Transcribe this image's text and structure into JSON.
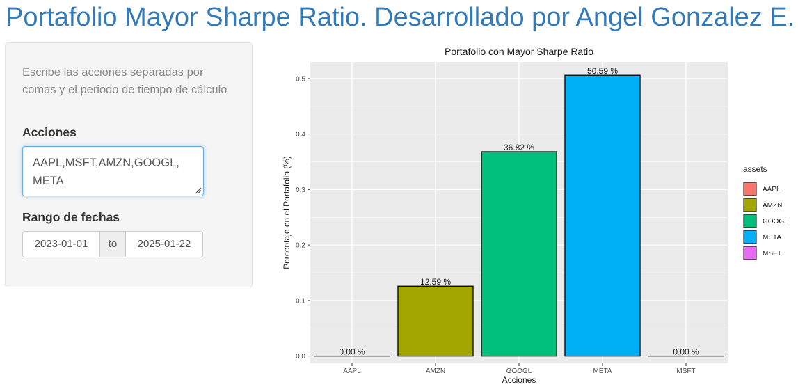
{
  "page": {
    "title": "Portafolio Mayor Sharpe Ratio. Desarrollado por Angel Gonzalez E."
  },
  "sidebar": {
    "help_text": "Escribe las acciones separadas por comas y el periodo de tiempo de cálculo",
    "stocks_label": "Acciones",
    "stocks_value": "AAPL,MSFT,AMZN,GOOGL,\nMETA",
    "date_range_label": "Rango de fechas",
    "date_start": "2023-01-01",
    "date_separator": "to",
    "date_end": "2025-01-22"
  },
  "chart_data": {
    "type": "bar",
    "title": "Portafolio con Mayor Sharpe Ratio",
    "xlabel": "Acciones",
    "ylabel": "Porcentaje en el Portafolio (%)",
    "categories": [
      "AAPL",
      "AMZN",
      "GOOGL",
      "META",
      "MSFT"
    ],
    "values": [
      0.0,
      0.1259,
      0.3682,
      0.5059,
      0.0
    ],
    "data_labels": [
      "0.00 %",
      "12.59 %",
      "36.82 %",
      "50.59 %",
      "0.00 %"
    ],
    "colors": [
      "#F8766D",
      "#A3A500",
      "#00BF7D",
      "#00B0F6",
      "#E76BF3"
    ],
    "ylim": [
      -0.013,
      0.53
    ],
    "yticks": [
      0.0,
      0.1,
      0.2,
      0.3,
      0.4,
      0.5
    ],
    "ytick_labels": [
      "0.0",
      "0.1",
      "0.2",
      "0.3",
      "0.4",
      "0.5"
    ],
    "grid": true,
    "panel_background": "#EBEBEB",
    "legend": {
      "title": "assets",
      "position": "right",
      "entries": [
        "AAPL",
        "AMZN",
        "GOOGL",
        "META",
        "MSFT"
      ]
    }
  }
}
